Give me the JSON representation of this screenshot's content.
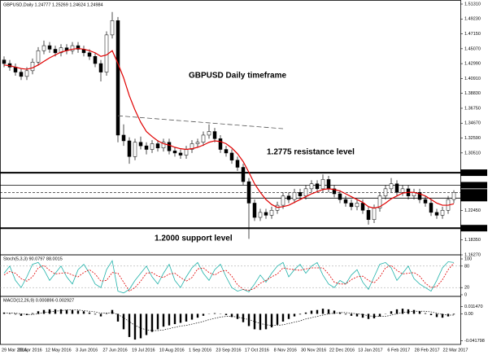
{
  "chart_data": [
    {
      "type": "candlestick",
      "header": "GBPUSD,Daily  1.24777 1.25269 1.24624 1.24984",
      "annotations": [
        "GBPUSD Daily timeframe",
        "1.2775 resistance level",
        "1.2000 support level"
      ],
      "ylim": [
        1.1627,
        1.5131
      ],
      "yticks": [
        {
          "value": 1.5131,
          "label": "1.51310"
        },
        {
          "value": 1.4923,
          "label": "1.49230"
        },
        {
          "value": 1.4715,
          "label": "1.47150"
        },
        {
          "value": 1.4507,
          "label": "1.45070"
        },
        {
          "value": 1.4299,
          "label": "1.42990"
        },
        {
          "value": 1.4091,
          "label": "1.40910"
        },
        {
          "value": 1.3883,
          "label": "1.38830"
        },
        {
          "value": 1.3675,
          "label": "1.36750"
        },
        {
          "value": 1.3467,
          "label": "1.34670"
        },
        {
          "value": 1.3259,
          "label": "1.32590"
        },
        {
          "value": 1.3051,
          "label": "1.30510"
        },
        {
          "value": 1.2245,
          "label": "1.22450"
        },
        {
          "value": 1.1835,
          "label": "1.18350"
        },
        {
          "value": 1.1627,
          "label": "1.16270"
        }
      ],
      "levels": [
        {
          "value": 1.2775,
          "label": "1.27750",
          "width": 2,
          "dashed": false
        },
        {
          "value": 1.26,
          "label": "1.26000",
          "width": 0.8,
          "dashed": false
        },
        {
          "value": 1.25,
          "label": "1.25000",
          "width": 0.6,
          "dashed": true
        },
        {
          "value": 1.242,
          "label": "1.24200",
          "width": 0.8,
          "dashed": false
        },
        {
          "value": 1.2,
          "label": "1.20000",
          "width": 2,
          "dashed": false
        }
      ],
      "xlabels": [
        "29 Mar 2016",
        "20 Apr 2016",
        "12 May 2016",
        "3 Jun 2016",
        "27 Jun 2016",
        "19 Jul 2016",
        "10 Aug 2016",
        "1 Sep 2016",
        "23 Sep 2016",
        "17 Oct 2016",
        "8 Nov 2016",
        "30 Nov 2016",
        "22 Dec 2016",
        "13 Jan 2017",
        "6 Feb 2017",
        "28 Feb 2017",
        "22 Mar 2017"
      ],
      "up_color": "#ffffff",
      "down_color": "#000000",
      "ma_color": "#e00000",
      "trendline": {
        "x": [
          20,
          49
        ],
        "y": [
          1.357,
          1.339
        ]
      },
      "candles": [
        [
          1.435,
          1.44,
          1.425,
          1.43
        ],
        [
          1.43,
          1.435,
          1.42,
          1.425
        ],
        [
          1.425,
          1.43,
          1.413,
          1.418
        ],
        [
          1.418,
          1.423,
          1.407,
          1.412
        ],
        [
          1.412,
          1.425,
          1.407,
          1.42
        ],
        [
          1.42,
          1.437,
          1.415,
          1.432
        ],
        [
          1.432,
          1.453,
          1.427,
          1.448
        ],
        [
          1.448,
          1.462,
          1.443,
          1.455
        ],
        [
          1.455,
          1.46,
          1.445,
          1.45
        ],
        [
          1.45,
          1.455,
          1.44,
          1.445
        ],
        [
          1.445,
          1.457,
          1.44,
          1.452
        ],
        [
          1.452,
          1.457,
          1.443,
          1.448
        ],
        [
          1.448,
          1.46,
          1.443,
          1.455
        ],
        [
          1.455,
          1.46,
          1.445,
          1.45
        ],
        [
          1.45,
          1.455,
          1.44,
          1.445
        ],
        [
          1.445,
          1.45,
          1.435,
          1.44
        ],
        [
          1.44,
          1.445,
          1.425,
          1.43
        ],
        [
          1.43,
          1.435,
          1.405,
          1.418
        ],
        [
          1.418,
          1.475,
          1.413,
          1.47
        ],
        [
          1.47,
          1.502,
          1.465,
          1.49
        ],
        [
          1.49,
          1.495,
          1.32,
          1.33
        ],
        [
          1.33,
          1.345,
          1.315,
          1.322
        ],
        [
          1.322,
          1.327,
          1.29,
          1.3
        ],
        [
          1.3,
          1.325,
          1.295,
          1.32
        ],
        [
          1.32,
          1.328,
          1.31,
          1.315
        ],
        [
          1.315,
          1.32,
          1.303,
          1.31
        ],
        [
          1.31,
          1.323,
          1.305,
          1.318
        ],
        [
          1.318,
          1.323,
          1.307,
          1.312
        ],
        [
          1.312,
          1.325,
          1.307,
          1.32
        ],
        [
          1.32,
          1.325,
          1.303,
          1.308
        ],
        [
          1.308,
          1.313,
          1.3,
          1.305
        ],
        [
          1.305,
          1.31,
          1.297,
          1.302
        ],
        [
          1.302,
          1.315,
          1.297,
          1.31
        ],
        [
          1.31,
          1.323,
          1.305,
          1.318
        ],
        [
          1.318,
          1.325,
          1.313,
          1.32
        ],
        [
          1.32,
          1.335,
          1.315,
          1.33
        ],
        [
          1.33,
          1.345,
          1.325,
          1.335
        ],
        [
          1.335,
          1.34,
          1.32,
          1.325
        ],
        [
          1.325,
          1.33,
          1.305,
          1.31
        ],
        [
          1.31,
          1.315,
          1.3,
          1.305
        ],
        [
          1.305,
          1.31,
          1.29,
          1.295
        ],
        [
          1.295,
          1.3,
          1.28,
          1.285
        ],
        [
          1.285,
          1.29,
          1.26,
          1.265
        ],
        [
          1.265,
          1.27,
          1.185,
          1.235
        ],
        [
          1.235,
          1.24,
          1.21,
          1.215
        ],
        [
          1.215,
          1.227,
          1.21,
          1.222
        ],
        [
          1.222,
          1.227,
          1.213,
          1.218
        ],
        [
          1.218,
          1.23,
          1.213,
          1.225
        ],
        [
          1.225,
          1.237,
          1.22,
          1.232
        ],
        [
          1.232,
          1.25,
          1.227,
          1.245
        ],
        [
          1.245,
          1.25,
          1.235,
          1.24
        ],
        [
          1.24,
          1.255,
          1.235,
          1.25
        ],
        [
          1.25,
          1.255,
          1.24,
          1.245
        ],
        [
          1.245,
          1.26,
          1.24,
          1.255
        ],
        [
          1.255,
          1.267,
          1.25,
          1.262
        ],
        [
          1.262,
          1.267,
          1.25,
          1.255
        ],
        [
          1.255,
          1.275,
          1.25,
          1.268
        ],
        [
          1.268,
          1.273,
          1.25,
          1.255
        ],
        [
          1.255,
          1.26,
          1.243,
          1.248
        ],
        [
          1.248,
          1.253,
          1.235,
          1.24
        ],
        [
          1.24,
          1.245,
          1.23,
          1.235
        ],
        [
          1.235,
          1.24,
          1.225,
          1.23
        ],
        [
          1.23,
          1.24,
          1.225,
          1.235
        ],
        [
          1.235,
          1.24,
          1.22,
          1.225
        ],
        [
          1.225,
          1.23,
          1.205,
          1.212
        ],
        [
          1.212,
          1.233,
          1.207,
          1.228
        ],
        [
          1.228,
          1.25,
          1.223,
          1.245
        ],
        [
          1.245,
          1.26,
          1.24,
          1.255
        ],
        [
          1.255,
          1.27,
          1.25,
          1.262
        ],
        [
          1.262,
          1.267,
          1.245,
          1.25
        ],
        [
          1.25,
          1.26,
          1.245,
          1.255
        ],
        [
          1.255,
          1.26,
          1.24,
          1.245
        ],
        [
          1.245,
          1.255,
          1.24,
          1.25
        ],
        [
          1.25,
          1.255,
          1.235,
          1.24
        ],
        [
          1.24,
          1.245,
          1.23,
          1.235
        ],
        [
          1.235,
          1.24,
          1.217,
          1.222
        ],
        [
          1.222,
          1.227,
          1.213,
          1.218
        ],
        [
          1.218,
          1.23,
          1.213,
          1.225
        ],
        [
          1.225,
          1.245,
          1.22,
          1.24
        ],
        [
          1.24,
          1.253,
          1.235,
          1.25
        ]
      ],
      "ma": [
        1.428,
        1.427,
        1.425,
        1.423,
        1.422,
        1.424,
        1.428,
        1.433,
        1.438,
        1.442,
        1.446,
        1.448,
        1.45,
        1.451,
        1.45,
        1.448,
        1.445,
        1.44,
        1.442,
        1.448,
        1.43,
        1.41,
        1.385,
        1.365,
        1.348,
        1.335,
        1.328,
        1.322,
        1.318,
        1.316,
        1.313,
        1.311,
        1.31,
        1.311,
        1.313,
        1.316,
        1.32,
        1.322,
        1.321,
        1.318,
        1.312,
        1.304,
        1.293,
        1.278,
        1.262,
        1.25,
        1.24,
        1.233,
        1.229,
        1.23,
        1.232,
        1.236,
        1.24,
        1.244,
        1.248,
        1.251,
        1.254,
        1.255,
        1.254,
        1.252,
        1.248,
        1.244,
        1.24,
        1.236,
        1.23,
        1.228,
        1.23,
        1.235,
        1.241,
        1.245,
        1.249,
        1.25,
        1.25,
        1.248,
        1.245,
        1.24,
        1.235,
        1.232,
        1.232,
        1.234
      ]
    },
    {
      "type": "stochastic",
      "header": "Stoch(5,3,3) 90.0797 88.0015",
      "ylim": [
        0,
        100
      ],
      "yticks": [
        100,
        80,
        20,
        0
      ],
      "levels": [
        80,
        20
      ],
      "k_color": "#20b2aa",
      "d_color": "#e00000",
      "k": [
        60,
        80,
        40,
        20,
        50,
        85,
        90,
        70,
        40,
        60,
        80,
        50,
        30,
        70,
        85,
        60,
        30,
        20,
        70,
        95,
        10,
        5,
        15,
        40,
        60,
        80,
        50,
        30,
        60,
        85,
        40,
        20,
        50,
        75,
        90,
        60,
        40,
        70,
        85,
        50,
        20,
        10,
        15,
        8,
        30,
        55,
        35,
        60,
        80,
        90,
        50,
        70,
        85,
        60,
        80,
        90,
        55,
        30,
        20,
        40,
        30,
        55,
        70,
        35,
        15,
        50,
        85,
        90,
        75,
        40,
        60,
        80,
        45,
        30,
        20,
        10,
        40,
        75,
        92,
        90
      ],
      "d": [
        55,
        65,
        60,
        45,
        38,
        50,
        75,
        82,
        68,
        58,
        60,
        62,
        55,
        50,
        62,
        70,
        58,
        38,
        40,
        62,
        60,
        35,
        10,
        20,
        38,
        60,
        62,
        52,
        48,
        58,
        60,
        48,
        38,
        48,
        72,
        75,
        62,
        55,
        65,
        68,
        52,
        28,
        15,
        12,
        18,
        32,
        40,
        50,
        58,
        75,
        72,
        70,
        68,
        72,
        75,
        75,
        75,
        58,
        35,
        30,
        30,
        42,
        50,
        52,
        40,
        33,
        50,
        75,
        82,
        68,
        58,
        60,
        62,
        52,
        32,
        20,
        23,
        42,
        70,
        88
      ]
    },
    {
      "type": "macd",
      "header": "MACD(12,26,9) 0.000896 0.002927",
      "ylim": [
        -0.045,
        0.017
      ],
      "yticks": [
        {
          "value": 0.01147,
          "label": "0.011470"
        },
        {
          "value": 0,
          "label": "0.00"
        },
        {
          "value": -0.041798,
          "label": "-0.041798"
        }
      ],
      "hist_color": "#000000",
      "signal_color": "#000000",
      "hist": [
        0.002,
        0.001,
        -0.001,
        -0.003,
        -0.002,
        0.001,
        0.004,
        0.006,
        0.007,
        0.007,
        0.007,
        0.006,
        0.006,
        0.005,
        0.004,
        0.002,
        -0.001,
        -0.004,
        0.001,
        0.006,
        -0.012,
        -0.024,
        -0.036,
        -0.04,
        -0.038,
        -0.033,
        -0.028,
        -0.024,
        -0.02,
        -0.018,
        -0.016,
        -0.014,
        -0.012,
        -0.009,
        -0.006,
        -0.003,
        0.0,
        0.001,
        0.0,
        -0.002,
        -0.005,
        -0.008,
        -0.013,
        -0.019,
        -0.024,
        -0.025,
        -0.024,
        -0.021,
        -0.017,
        -0.012,
        -0.008,
        -0.004,
        -0.001,
        0.002,
        0.005,
        0.006,
        0.008,
        0.007,
        0.005,
        0.002,
        -0.001,
        -0.003,
        -0.004,
        -0.006,
        -0.008,
        -0.007,
        -0.004,
        0.0,
        0.004,
        0.007,
        0.008,
        0.007,
        0.006,
        0.004,
        0.001,
        -0.002,
        -0.005,
        -0.006,
        -0.004,
        -0.001
      ],
      "signal": [
        0.001,
        0.001,
        0.001,
        0.0,
        -0.001,
        -0.001,
        0.0,
        0.002,
        0.003,
        0.004,
        0.005,
        0.006,
        0.006,
        0.006,
        0.005,
        0.004,
        0.003,
        0.001,
        0.001,
        0.002,
        -0.001,
        -0.006,
        -0.012,
        -0.018,
        -0.022,
        -0.025,
        -0.026,
        -0.026,
        -0.025,
        -0.023,
        -0.021,
        -0.019,
        -0.018,
        -0.016,
        -0.014,
        -0.012,
        -0.009,
        -0.007,
        -0.005,
        -0.004,
        -0.004,
        -0.005,
        -0.007,
        -0.009,
        -0.012,
        -0.015,
        -0.017,
        -0.018,
        -0.018,
        -0.017,
        -0.015,
        -0.013,
        -0.011,
        -0.008,
        -0.006,
        -0.004,
        -0.002,
        0.0,
        0.001,
        0.002,
        0.002,
        0.001,
        0.0,
        -0.001,
        -0.003,
        -0.004,
        -0.004,
        -0.004,
        -0.002,
        0.0,
        0.002,
        0.003,
        0.004,
        0.004,
        0.004,
        0.003,
        0.001,
        -0.001,
        -0.002,
        -0.002
      ]
    }
  ]
}
